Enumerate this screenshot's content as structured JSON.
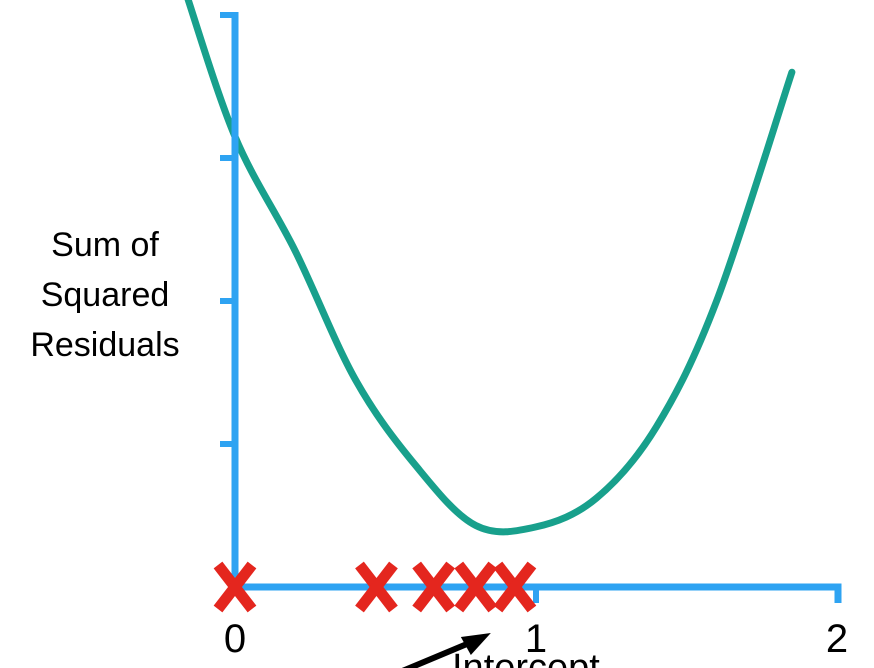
{
  "chart_data": {
    "type": "line",
    "title": "",
    "xlabel": "Intercept",
    "ylabel_lines": [
      "Sum of",
      "Squared",
      "Residuals"
    ],
    "x_ticks": [
      "0",
      "1",
      "2"
    ],
    "xlim": [
      0,
      2
    ],
    "ylim": [
      0,
      4
    ],
    "y_ticks_shown": 4,
    "series": [
      {
        "name": "sum of squared residuals",
        "color": "#18a08c",
        "x": [
          -0.17,
          0.0,
          0.2,
          0.4,
          0.6,
          0.8,
          1.0,
          1.2,
          1.4,
          1.6,
          1.85
        ],
        "y": [
          4.2,
          3.15,
          2.35,
          1.45,
          0.85,
          0.43,
          0.42,
          0.62,
          1.12,
          2.0,
          3.6
        ]
      }
    ],
    "markers": {
      "symbol": "X",
      "color": "#e4261e",
      "x": [
        0.0,
        0.47,
        0.66,
        0.8,
        0.93
      ]
    },
    "annotation": {
      "text": "Intercept",
      "points_to_x": 0.85
    }
  }
}
